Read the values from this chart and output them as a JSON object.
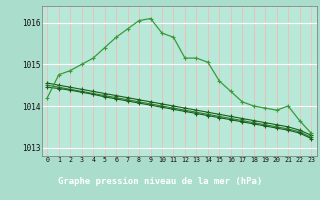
{
  "title": "Graphe pression niveau de la mer (hPa)",
  "bg_color": "#aaddcc",
  "plot_bg": "#b8e8d8",
  "grid_color_v": "#ffb0b0",
  "grid_color_h": "#ffffff",
  "label_bg": "#2d6b2d",
  "label_fg": "#ffffff",
  "line_dark": "#1a5c1a",
  "line_mid": "#2e7d2e",
  "line_light": "#3a9a3a",
  "xlim": [
    -0.5,
    23.5
  ],
  "ylim": [
    1012.8,
    1016.4
  ],
  "yticks": [
    1013,
    1014,
    1015,
    1016
  ],
  "xticks": [
    0,
    1,
    2,
    3,
    4,
    5,
    6,
    7,
    8,
    9,
    10,
    11,
    12,
    13,
    14,
    15,
    16,
    17,
    18,
    19,
    20,
    21,
    22,
    23
  ],
  "series_wavy": {
    "x": [
      0,
      1,
      2,
      3,
      4,
      5,
      6,
      7,
      8,
      9,
      10,
      11,
      12,
      13,
      14,
      15,
      16,
      17,
      18,
      19,
      20,
      21,
      22,
      23
    ],
    "y": [
      1014.2,
      1014.75,
      1014.85,
      1015.0,
      1015.15,
      1015.4,
      1015.65,
      1015.85,
      1016.05,
      1016.1,
      1015.75,
      1015.65,
      1015.15,
      1015.15,
      1015.05,
      1014.6,
      1014.35,
      1014.1,
      1014.0,
      1013.95,
      1013.9,
      1014.0,
      1013.65,
      1013.35
    ]
  },
  "series_diag1": {
    "x": [
      0,
      1,
      2,
      3,
      4,
      5,
      6,
      7,
      8,
      9,
      10,
      11,
      12,
      13,
      14,
      15,
      16,
      17,
      18,
      19,
      20,
      21,
      22,
      23
    ],
    "y": [
      1014.55,
      1014.5,
      1014.45,
      1014.4,
      1014.35,
      1014.3,
      1014.25,
      1014.2,
      1014.15,
      1014.1,
      1014.05,
      1014.0,
      1013.95,
      1013.9,
      1013.85,
      1013.8,
      1013.75,
      1013.7,
      1013.65,
      1013.6,
      1013.55,
      1013.5,
      1013.42,
      1013.3
    ]
  },
  "series_diag2": {
    "x": [
      0,
      1,
      2,
      3,
      4,
      5,
      6,
      7,
      8,
      9,
      10,
      11,
      12,
      13,
      14,
      15,
      16,
      17,
      18,
      19,
      20,
      21,
      22,
      23
    ],
    "y": [
      1014.5,
      1014.45,
      1014.4,
      1014.35,
      1014.3,
      1014.25,
      1014.2,
      1014.15,
      1014.1,
      1014.05,
      1014.0,
      1013.95,
      1013.9,
      1013.85,
      1013.8,
      1013.75,
      1013.7,
      1013.65,
      1013.6,
      1013.55,
      1013.5,
      1013.45,
      1013.38,
      1013.25
    ]
  },
  "series_diag3": {
    "x": [
      0,
      1,
      2,
      3,
      4,
      5,
      6,
      7,
      8,
      9,
      10,
      11,
      12,
      13,
      14,
      15,
      16,
      17,
      18,
      19,
      20,
      21,
      22,
      23
    ],
    "y": [
      1014.45,
      1014.42,
      1014.38,
      1014.33,
      1014.28,
      1014.22,
      1014.17,
      1014.12,
      1014.07,
      1014.02,
      1013.97,
      1013.92,
      1013.87,
      1013.82,
      1013.77,
      1013.72,
      1013.67,
      1013.62,
      1013.57,
      1013.52,
      1013.47,
      1013.42,
      1013.35,
      1013.22
    ]
  }
}
